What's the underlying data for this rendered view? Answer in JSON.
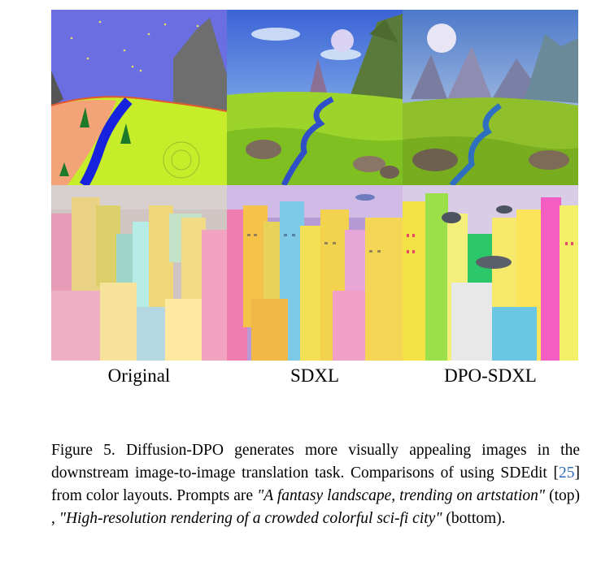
{
  "figure": {
    "columns": [
      "Original",
      "SDXL",
      "DPO-SDXL"
    ],
    "rows": [
      "landscape",
      "city"
    ]
  },
  "caption": {
    "label": "Figure 5.",
    "text_1": "Diffusion-DPO generates more visually appealing images in the downstream image-to-image translation task. Comparisons of using SDEdit [",
    "ref": "25",
    "text_2": "] from color layouts. Prompts are ",
    "prompt_top": "\"A fantasy landscape, trending on artstation\"",
    "text_3": " (top) , ",
    "prompt_bottom": "\"High-resolution rendering of a crowded colorful sci-fi city\"",
    "text_4": " (bottom)."
  }
}
